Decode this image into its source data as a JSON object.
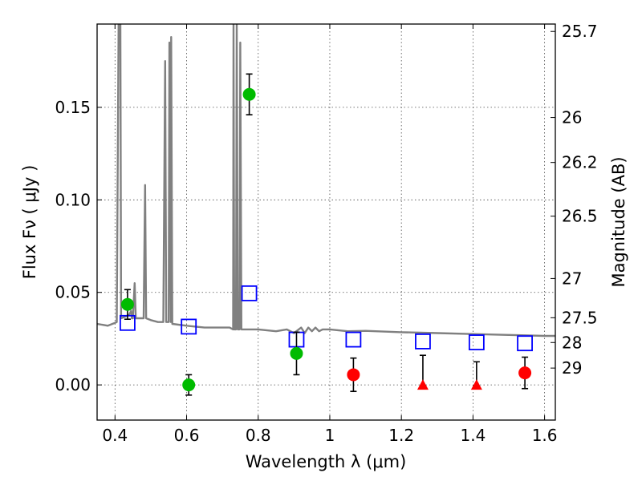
{
  "chart_data": {
    "type": "scatter",
    "title": "",
    "xlabel": "Wavelength  λ (μm)",
    "ylabel": "Flux  Fν  ( μJy )",
    "y2label": "Magnitude (AB)",
    "xlim": [
      0.35,
      1.63
    ],
    "ylim": [
      -0.019,
      0.195
    ],
    "grid": true,
    "x_ticks": [
      0.4,
      0.6,
      0.8,
      1,
      1.2,
      1.4,
      1.6
    ],
    "x_tick_labels": [
      "0.4",
      "0.6",
      "0.8",
      "1",
      "1.2",
      "1.4",
      "1.6"
    ],
    "y_ticks": [
      0.0,
      0.05,
      0.1,
      0.15
    ],
    "y_tick_labels": [
      "0.00",
      "0.05",
      "0.10",
      "0.15"
    ],
    "mag_ticks": [
      {
        "label": "25.7",
        "flux": 0.191
      },
      {
        "label": "26",
        "flux": 0.1445
      },
      {
        "label": "26.2",
        "flux": 0.1202
      },
      {
        "label": "26.5",
        "flux": 0.0912
      },
      {
        "label": "27",
        "flux": 0.0575
      },
      {
        "label": "27.5",
        "flux": 0.0363
      },
      {
        "label": "28",
        "flux": 0.0229
      },
      {
        "label": "29",
        "flux": 0.0091
      }
    ],
    "series": [
      {
        "marker": "circle",
        "color": "#00bb00",
        "points": [
          {
            "x": 0.435,
            "y": 0.0435,
            "err": 0.008
          },
          {
            "x": 0.606,
            "y": 0.0,
            "err": 0.0055
          },
          {
            "x": 0.775,
            "y": 0.157,
            "err": 0.011
          },
          {
            "x": 0.907,
            "y": 0.017,
            "err": 0.0115
          }
        ]
      },
      {
        "marker": "circle",
        "color": "#ff0000",
        "points": [
          {
            "x": 1.066,
            "y": 0.0055,
            "err": 0.009
          },
          {
            "x": 1.545,
            "y": 0.0065,
            "err": 0.0085
          }
        ]
      },
      {
        "marker": "triangle",
        "color": "#ff0000",
        "points": [
          {
            "x": 1.26,
            "y": 0.0,
            "err_up": 0.016
          },
          {
            "x": 1.41,
            "y": 0.0,
            "err_up": 0.0125
          }
        ]
      },
      {
        "marker": "square",
        "color": "#0000ff",
        "points": [
          {
            "x": 0.435,
            "y": 0.0335
          },
          {
            "x": 0.606,
            "y": 0.0315
          },
          {
            "x": 0.775,
            "y": 0.0495
          },
          {
            "x": 0.907,
            "y": 0.0245
          },
          {
            "x": 1.066,
            "y": 0.0245
          },
          {
            "x": 1.26,
            "y": 0.0235
          },
          {
            "x": 1.41,
            "y": 0.023
          },
          {
            "x": 1.545,
            "y": 0.0225
          }
        ]
      }
    ],
    "model_spectrum": {
      "color": "#808080",
      "points": [
        [
          0.35,
          0.033
        ],
        [
          0.38,
          0.032
        ],
        [
          0.4,
          0.0335
        ],
        [
          0.405,
          0.034
        ],
        [
          0.41,
          0.195
        ],
        [
          0.415,
          0.195
        ],
        [
          0.417,
          0.036
        ],
        [
          0.43,
          0.037
        ],
        [
          0.44,
          0.038
        ],
        [
          0.445,
          0.04
        ],
        [
          0.447,
          0.036
        ],
        [
          0.45,
          0.036
        ],
        [
          0.455,
          0.055
        ],
        [
          0.458,
          0.036
        ],
        [
          0.47,
          0.036
        ],
        [
          0.48,
          0.036
        ],
        [
          0.484,
          0.108
        ],
        [
          0.487,
          0.036
        ],
        [
          0.5,
          0.035
        ],
        [
          0.52,
          0.034
        ],
        [
          0.535,
          0.034
        ],
        [
          0.54,
          0.175
        ],
        [
          0.543,
          0.034
        ],
        [
          0.55,
          0.034
        ],
        [
          0.552,
          0.185
        ],
        [
          0.556,
          0.034
        ],
        [
          0.557,
          0.188
        ],
        [
          0.56,
          0.033
        ],
        [
          0.6,
          0.032
        ],
        [
          0.65,
          0.031
        ],
        [
          0.7,
          0.031
        ],
        [
          0.72,
          0.031
        ],
        [
          0.73,
          0.03
        ],
        [
          0.731,
          0.195
        ],
        [
          0.733,
          0.03
        ],
        [
          0.738,
          0.03
        ],
        [
          0.74,
          0.195
        ],
        [
          0.743,
          0.03
        ],
        [
          0.748,
          0.03
        ],
        [
          0.75,
          0.185
        ],
        [
          0.753,
          0.03
        ],
        [
          0.76,
          0.03
        ],
        [
          0.8,
          0.03
        ],
        [
          0.85,
          0.029
        ],
        [
          0.88,
          0.03
        ],
        [
          0.9,
          0.028
        ],
        [
          0.92,
          0.031
        ],
        [
          0.93,
          0.028
        ],
        [
          0.94,
          0.031
        ],
        [
          0.95,
          0.029
        ],
        [
          0.96,
          0.031
        ],
        [
          0.97,
          0.029
        ],
        [
          0.98,
          0.03
        ],
        [
          1.0,
          0.03
        ],
        [
          1.05,
          0.029
        ],
        [
          1.1,
          0.0292
        ],
        [
          1.2,
          0.0285
        ],
        [
          1.3,
          0.028
        ],
        [
          1.4,
          0.0275
        ],
        [
          1.5,
          0.027
        ],
        [
          1.6,
          0.0265
        ],
        [
          1.63,
          0.0265
        ]
      ]
    }
  }
}
